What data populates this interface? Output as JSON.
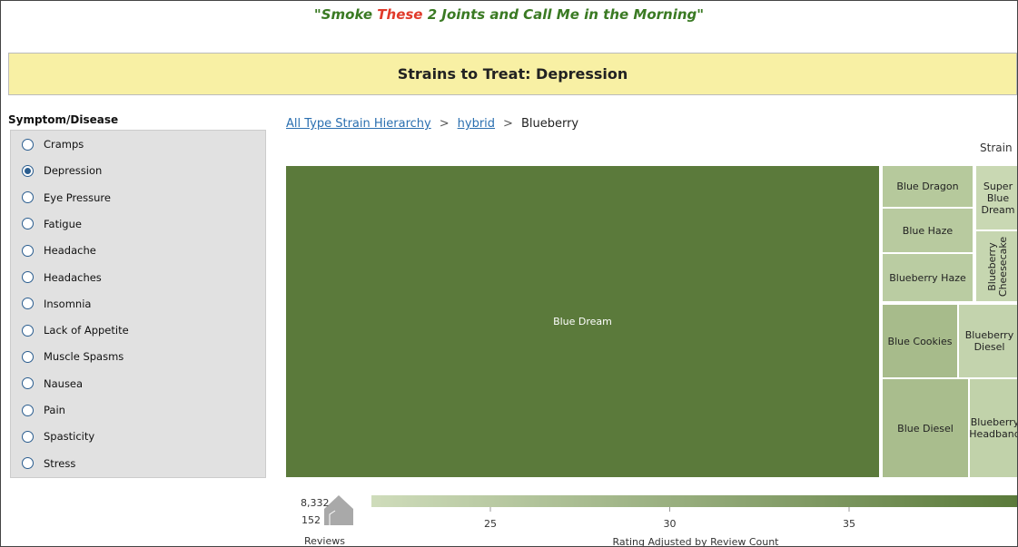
{
  "header": {
    "title_parts": [
      "\"Smoke ",
      "These",
      " 2 Joints and Call Me in the Morning\""
    ]
  },
  "banner": {
    "title": "Strains to Treat: Depression"
  },
  "filter": {
    "label": "Symptom/Disease",
    "options": [
      {
        "label": "Cramps",
        "selected": false
      },
      {
        "label": "Depression",
        "selected": true
      },
      {
        "label": "Eye Pressure",
        "selected": false
      },
      {
        "label": "Fatigue",
        "selected": false
      },
      {
        "label": "Headache",
        "selected": false
      },
      {
        "label": "Headaches",
        "selected": false
      },
      {
        "label": "Insomnia",
        "selected": false
      },
      {
        "label": "Lack of Appetite",
        "selected": false
      },
      {
        "label": "Muscle Spasms",
        "selected": false
      },
      {
        "label": "Nausea",
        "selected": false
      },
      {
        "label": "Pain",
        "selected": false
      },
      {
        "label": "Spasticity",
        "selected": false
      },
      {
        "label": "Stress",
        "selected": false
      }
    ]
  },
  "breadcrumb": {
    "items": [
      "All Type Strain Hierarchy",
      "hybrid",
      "Blueberry"
    ],
    "separator": ">"
  },
  "treemap": {
    "header": "Strain",
    "tiles": [
      {
        "label": "Blue Dream"
      },
      {
        "label": "Blue Dragon"
      },
      {
        "label": "Super Blue Dream"
      },
      {
        "label": "Blue Haze"
      },
      {
        "label": "Blueberry Cheesecake"
      },
      {
        "label": "Blueberry Haze"
      },
      {
        "label": "Blue Cookies"
      },
      {
        "label": "Blueberry Diesel"
      },
      {
        "label": "Blue Diesel"
      },
      {
        "label": "Blueberry Headband"
      }
    ]
  },
  "legend": {
    "size": {
      "max": "8,332",
      "min": "152",
      "title": "Reviews"
    },
    "color": {
      "ticks": [
        25,
        30,
        35
      ],
      "title": "Rating Adjusted by Review Count"
    }
  }
}
